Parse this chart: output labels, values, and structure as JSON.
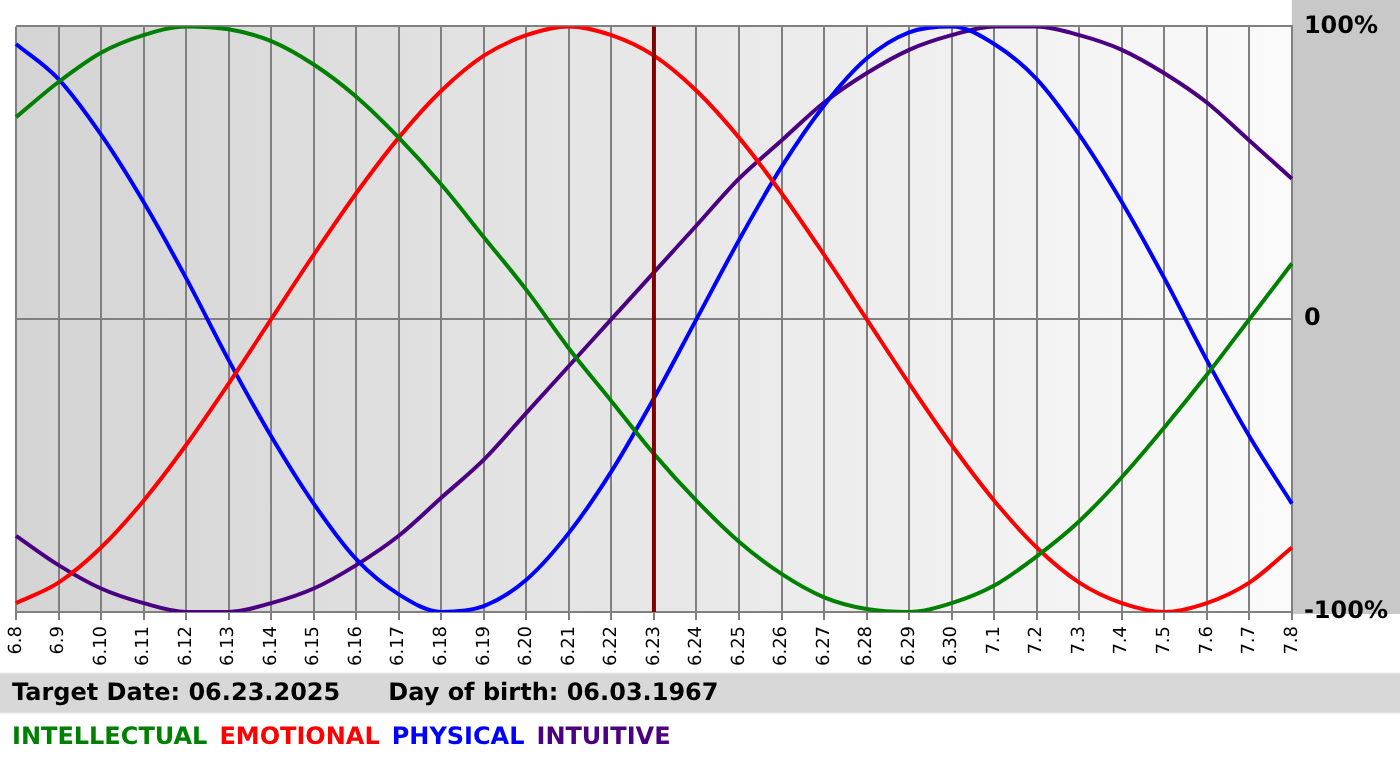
{
  "chart_data": {
    "type": "line",
    "categories": [
      "6.8",
      "6.9",
      "6.10",
      "6.11",
      "6.12",
      "6.13",
      "6.14",
      "6.15",
      "6.16",
      "6.17",
      "6.18",
      "6.19",
      "6.20",
      "6.21",
      "6.22",
      "6.23",
      "6.24",
      "6.25",
      "6.26",
      "6.27",
      "6.28",
      "6.29",
      "6.30",
      "7.1",
      "7.2",
      "7.3",
      "7.4",
      "7.5",
      "7.6",
      "7.7",
      "7.8"
    ],
    "series": [
      {
        "name": "INTELLECTUAL",
        "color": "#008000",
        "values": [
          69,
          81,
          91,
          97,
          100,
          99,
          95,
          87,
          76,
          62,
          46,
          28,
          10,
          -10,
          -28,
          -46,
          -62,
          -76,
          -87,
          -95,
          -99,
          -100,
          -97,
          -91,
          -81,
          -69,
          -54,
          -37,
          -19,
          0,
          19
        ]
      },
      {
        "name": "EMOTIONAL",
        "color": "#ff0000",
        "values": [
          -97,
          -90,
          -78,
          -62,
          -43,
          -22,
          0,
          22,
          43,
          62,
          78,
          90,
          97,
          100,
          97,
          90,
          78,
          62,
          43,
          22,
          0,
          -22,
          -43,
          -62,
          -78,
          -90,
          -97,
          -100,
          -97,
          -90,
          -78
        ]
      },
      {
        "name": "PHYSICAL",
        "color": "#0000ff",
        "values": [
          94,
          82,
          63,
          40,
          14,
          -14,
          -40,
          -63,
          -82,
          -94,
          -100,
          -98,
          -89,
          -73,
          -52,
          -27,
          0,
          27,
          52,
          73,
          89,
          98,
          100,
          94,
          82,
          63,
          40,
          14,
          -14,
          -40,
          -63
        ]
      },
      {
        "name": "INTUITIVE",
        "color": "#4b0082",
        "values": [
          -74,
          -84,
          -92,
          -97,
          -100,
          -100,
          -97,
          -92,
          -84,
          -74,
          -61,
          -48,
          -32,
          -16,
          0,
          16,
          32,
          48,
          61,
          74,
          84,
          92,
          97,
          100,
          100,
          97,
          92,
          84,
          74,
          61,
          48
        ]
      }
    ],
    "ylim": [
      -100,
      100
    ],
    "yticks": [
      {
        "value": -100,
        "label": "-100%"
      },
      0,
      {
        "value": 100,
        "label": "100%"
      }
    ],
    "ref_lines": [
      {
        "axis": "x",
        "value": "6.23",
        "color": "#800000"
      }
    ],
    "annotations": [
      "Target Date: 06.23.2025",
      "Day of birth: 06.03.1967"
    ],
    "grid": true,
    "legend": "bottom left",
    "marker": "none",
    "line_style": "solid"
  }
}
